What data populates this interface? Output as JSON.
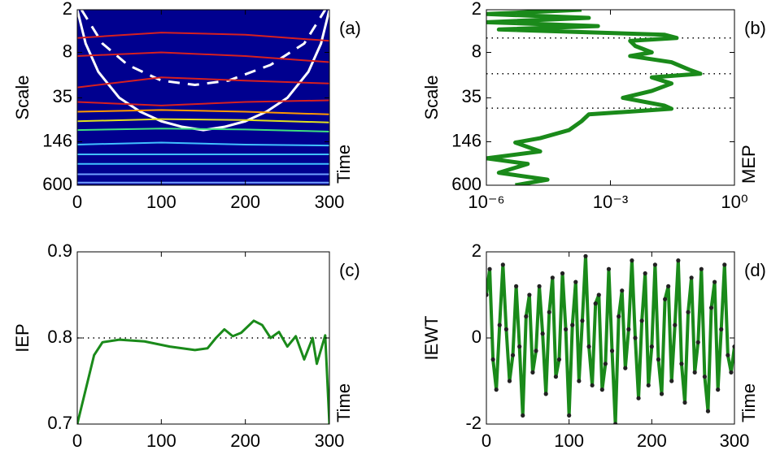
{
  "chart_data": [
    {
      "type": "line",
      "panel_label": "(a)",
      "y_label": "Scale",
      "side_label": "Time",
      "xlim": [
        0,
        300
      ],
      "xticks": [
        0,
        100,
        200,
        300
      ],
      "ylim": [
        600,
        2
      ],
      "yticks": [
        2,
        8,
        35,
        146,
        600
      ],
      "yscale": "log",
      "background": "#00008f",
      "series": [
        {
          "color": "#ffffff",
          "width": 3,
          "x": [
            0,
            10,
            25,
            50,
            75,
            100,
            125,
            150,
            175,
            200,
            225,
            250,
            275,
            290,
            300
          ],
          "values": [
            2,
            6,
            15,
            35,
            55,
            75,
            90,
            100,
            90,
            75,
            55,
            35,
            15,
            6,
            2
          ]
        },
        {
          "color": "#ffffff",
          "width": 3,
          "dash": true,
          "x": [
            5,
            30,
            60,
            100,
            140,
            180,
            230,
            270,
            295
          ],
          "values": [
            2,
            6,
            12,
            20,
            23,
            20,
            12,
            6,
            2
          ]
        },
        {
          "color": "#d62020",
          "width": 2,
          "x": [
            0,
            100,
            200,
            300
          ],
          "values": [
            5,
            4.2,
            4.5,
            5.5
          ]
        },
        {
          "color": "#d62020",
          "width": 2,
          "x": [
            0,
            100,
            200,
            300
          ],
          "values": [
            9,
            8,
            9,
            11
          ]
        },
        {
          "color": "#d62020",
          "width": 2,
          "x": [
            0,
            100,
            200,
            300
          ],
          "values": [
            25,
            18,
            20,
            22
          ]
        },
        {
          "color": "#d62020",
          "width": 2,
          "x": [
            0,
            100,
            200,
            300
          ],
          "values": [
            40,
            45,
            40,
            38
          ]
        },
        {
          "color": "#ff9900",
          "width": 2,
          "x": [
            0,
            100,
            200,
            300
          ],
          "values": [
            55,
            52,
            55,
            60
          ]
        },
        {
          "color": "#e0e020",
          "width": 2,
          "x": [
            0,
            100,
            200,
            300
          ],
          "values": [
            75,
            70,
            72,
            78
          ]
        },
        {
          "color": "#40e080",
          "width": 2,
          "x": [
            0,
            100,
            200,
            300
          ],
          "values": [
            100,
            95,
            98,
            105
          ]
        },
        {
          "color": "#40c0ff",
          "width": 2,
          "x": [
            0,
            100,
            200,
            300
          ],
          "values": [
            160,
            150,
            160,
            165
          ]
        },
        {
          "color": "#40c0ff",
          "width": 2,
          "x": [
            0,
            100,
            200,
            300
          ],
          "values": [
            220,
            220,
            220,
            220
          ]
        },
        {
          "color": "#40c0ff",
          "width": 2,
          "x": [
            0,
            100,
            200,
            300
          ],
          "values": [
            300,
            300,
            300,
            300
          ]
        },
        {
          "color": "#70a0ff",
          "width": 2,
          "x": [
            0,
            100,
            200,
            300
          ],
          "values": [
            420,
            420,
            420,
            420
          ]
        },
        {
          "color": "#70a0ff",
          "width": 2,
          "x": [
            0,
            100,
            200,
            300
          ],
          "values": [
            550,
            550,
            550,
            550
          ]
        }
      ]
    },
    {
      "type": "line",
      "panel_label": "(b)",
      "y_label": "Scale",
      "side_label": "MEP",
      "xlim": [
        1e-06,
        1
      ],
      "xscale": "log",
      "xticks": [
        {
          "value": 1e-06,
          "label": "10⁻⁶"
        },
        {
          "value": 0.001,
          "label": "10⁻³"
        },
        {
          "value": 1,
          "label": "10⁰"
        }
      ],
      "ylim": [
        600,
        2
      ],
      "yticks": [
        2,
        8,
        35,
        146,
        600
      ],
      "yscale": "log",
      "hlines": [
        5,
        16,
        49
      ],
      "series": [
        {
          "color": "#1a8a1a",
          "width": 5,
          "x": [
            0.0002,
            1e-06,
            0.0003,
            1e-06,
            0.0005,
            2e-06,
            0.02,
            0.04,
            0.003,
            0.004,
            0.01,
            0.003,
            0.03,
            0.08,
            0.15,
            0.01,
            0.03,
            0.01,
            0.002,
            0.02,
            0.03,
            0.0003,
            0.0002,
            0.0001,
            2e-05,
            5e-06,
            2e-05,
            1e-06,
            1e-05,
            2e-06,
            3e-05,
            5e-06
          ],
          "values": [
            2,
            2.3,
            2.6,
            3,
            3.4,
            3.8,
            4.5,
            5,
            5.5,
            6.5,
            8,
            9,
            11,
            14,
            16,
            18,
            22,
            28,
            35,
            45,
            50,
            60,
            75,
            100,
            130,
            150,
            200,
            250,
            300,
            400,
            500,
            600
          ]
        }
      ]
    },
    {
      "type": "line",
      "panel_label": "(c)",
      "y_label": "IEP",
      "side_label": "Time",
      "xlim": [
        0,
        300
      ],
      "xticks": [
        0,
        100,
        200,
        300
      ],
      "ylim": [
        0.7,
        0.9
      ],
      "yticks": [
        0.7,
        0.8,
        0.9
      ],
      "hlines": [
        0.8
      ],
      "series": [
        {
          "color": "#1a8a1a",
          "width": 3,
          "x": [
            0,
            5,
            10,
            20,
            30,
            50,
            80,
            110,
            140,
            155,
            165,
            175,
            185,
            195,
            210,
            220,
            230,
            240,
            250,
            260,
            270,
            280,
            285,
            295,
            300
          ],
          "values": [
            0.7,
            0.72,
            0.74,
            0.78,
            0.795,
            0.798,
            0.796,
            0.79,
            0.786,
            0.788,
            0.8,
            0.81,
            0.802,
            0.806,
            0.82,
            0.815,
            0.8,
            0.807,
            0.79,
            0.802,
            0.775,
            0.8,
            0.77,
            0.803,
            0.7
          ]
        }
      ]
    },
    {
      "type": "line",
      "panel_label": "(d)",
      "y_label": "IEWT",
      "side_label": "Time",
      "xlim": [
        0,
        300
      ],
      "xticks": [
        0,
        100,
        200,
        300
      ],
      "ylim": [
        -2,
        2
      ],
      "yticks": [
        -2,
        0,
        2
      ],
      "markers": true,
      "marker_color": "#222222",
      "x": [
        0,
        4,
        8,
        12,
        16,
        20,
        24,
        28,
        32,
        36,
        40,
        44,
        48,
        52,
        56,
        60,
        64,
        68,
        72,
        76,
        80,
        84,
        88,
        92,
        96,
        100,
        104,
        108,
        112,
        116,
        120,
        124,
        128,
        132,
        136,
        140,
        144,
        148,
        152,
        156,
        160,
        164,
        168,
        172,
        176,
        180,
        184,
        188,
        192,
        196,
        200,
        204,
        208,
        212,
        216,
        220,
        224,
        228,
        232,
        236,
        240,
        244,
        248,
        252,
        256,
        260,
        264,
        268,
        272,
        276,
        280,
        284,
        288,
        292,
        296,
        300
      ],
      "series": [
        {
          "color": "#1a8a1a",
          "width": 4,
          "values": [
            1.0,
            1.6,
            -0.5,
            -1.2,
            0.3,
            1.7,
            0.2,
            -1.0,
            -0.4,
            1.2,
            -0.2,
            -1.8,
            0.5,
            1.0,
            -0.8,
            -0.3,
            1.2,
            0.1,
            -1.3,
            0.6,
            1.4,
            -0.9,
            -0.5,
            1.5,
            0.2,
            -1.8,
            0.3,
            1.3,
            -1.0,
            0.4,
            1.9,
            -0.2,
            -1.1,
            0.8,
            1.0,
            -1.2,
            -0.6,
            1.6,
            -0.3,
            -2.0,
            0.5,
            1.1,
            -0.7,
            0.2,
            1.8,
            0.0,
            -1.4,
            0.4,
            1.5,
            -1.1,
            -0.2,
            1.7,
            -0.5,
            -1.3,
            0.9,
            1.2,
            -1.0,
            0.3,
            1.8,
            -0.6,
            -1.5,
            0.6,
            1.4,
            -0.8,
            -0.1,
            1.6,
            -0.9,
            -1.7,
            0.7,
            1.3,
            -1.2,
            0.2,
            1.7,
            -0.4,
            -0.8,
            -0.2
          ]
        }
      ]
    }
  ]
}
